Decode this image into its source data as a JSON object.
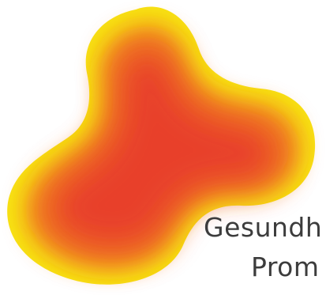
{
  "logo": {
    "text_line_1": "Gesundh",
    "text_line_2": "Prom",
    "colors": {
      "inner": "#e8402a",
      "mid": "#f28a1c",
      "outer": "#f7e313",
      "text": "#3c3c3c",
      "background": "#ffffff"
    }
  }
}
